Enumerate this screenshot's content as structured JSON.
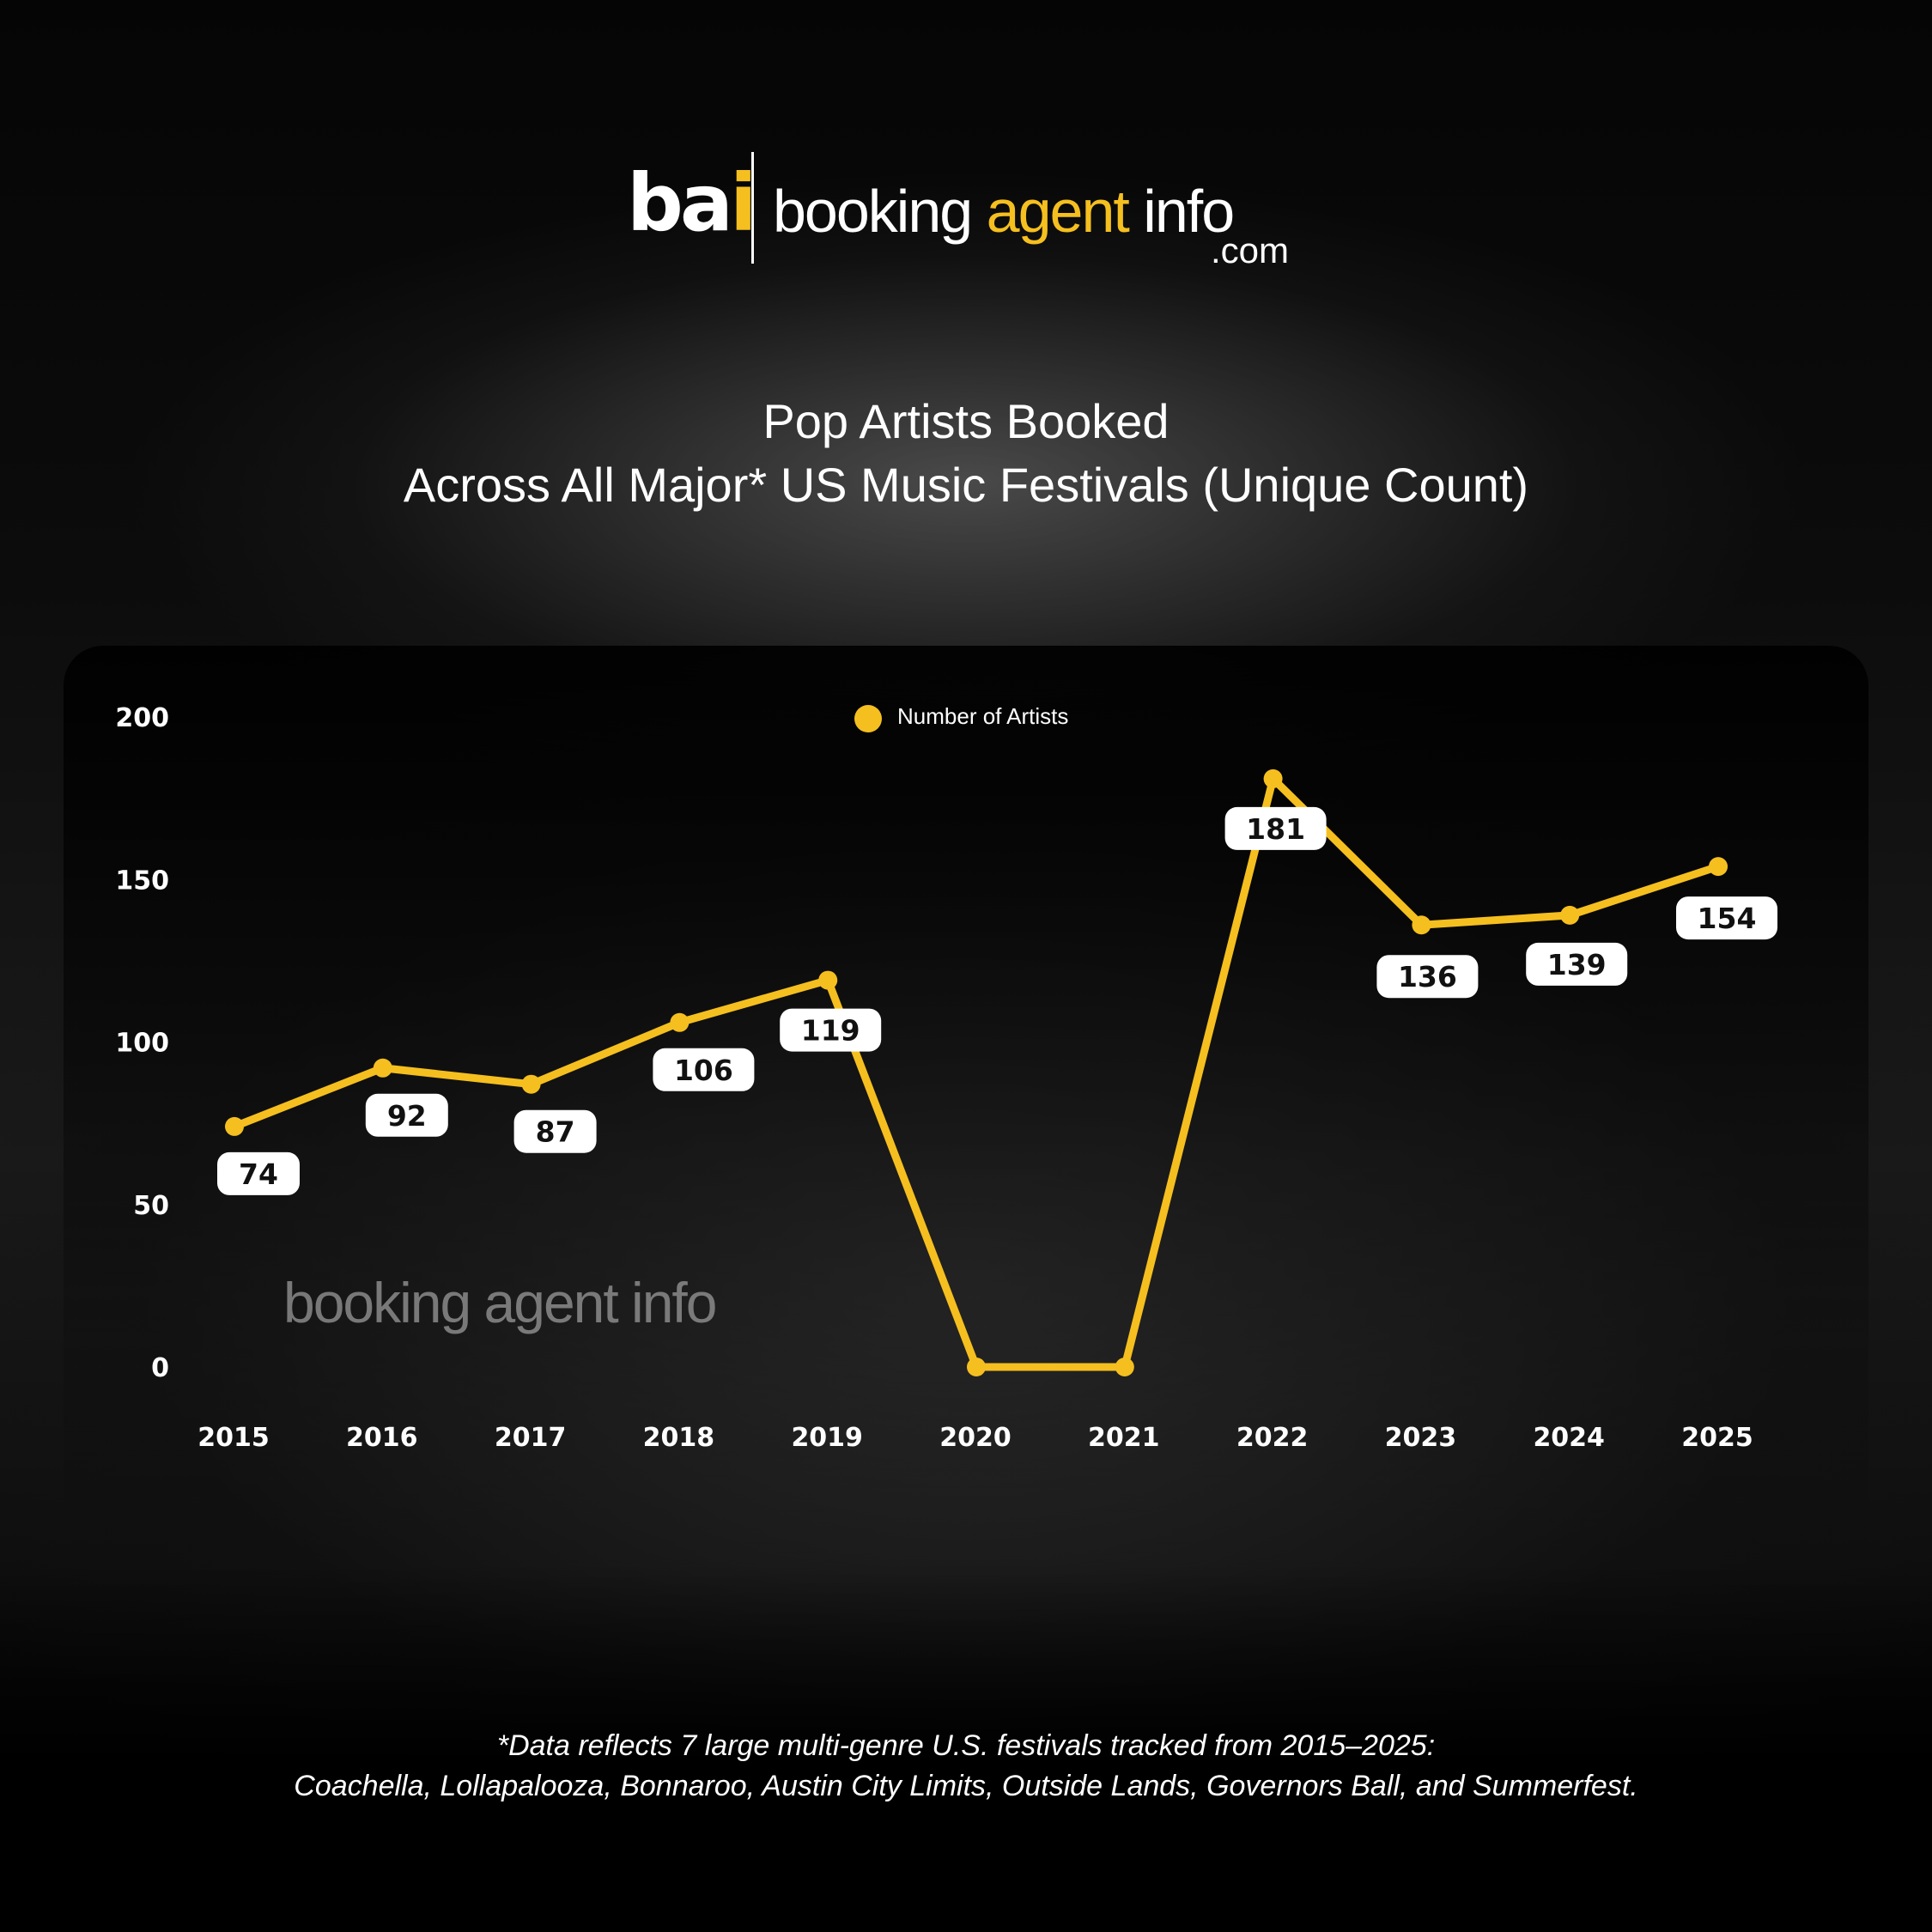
{
  "logo": {
    "mark_main": "ba",
    "mark_accent": "i",
    "name_part1": "booking ",
    "name_accent": "agent",
    "name_part2": " info",
    "domain": ".com"
  },
  "title": "Pop Artists Booked",
  "subtitle": "Across All Major* US Music Festivals (Unique Count)",
  "watermark": "booking agent info",
  "footnote": {
    "line1": "*Data reflects 7 large multi-genre U.S. festivals tracked from 2015–2025:",
    "line2": "Coachella, Lollapalooza, Bonnaroo, Austin City Limits, Outside Lands, Governors Ball, and Summerfest."
  },
  "colors": {
    "line": "#f5bf1f",
    "label_box": "#ffffff",
    "label_text": "#111111"
  },
  "chart_data": {
    "type": "line",
    "title": "Pop Artists Booked",
    "subtitle": "Across All Major* US Music Festivals (Unique Count)",
    "xlabel": "",
    "ylabel": "",
    "categories": [
      "2015",
      "2016",
      "2017",
      "2018",
      "2019",
      "2020",
      "2021",
      "2022",
      "2023",
      "2024",
      "2025"
    ],
    "series": [
      {
        "name": "Number of Artists",
        "values": [
          74,
          92,
          87,
          106,
          119,
          0,
          0,
          181,
          136,
          139,
          154
        ],
        "labels": [
          "74",
          "92",
          "87",
          "106",
          "119",
          null,
          null,
          "181",
          "136",
          "139",
          "154"
        ],
        "color": "#f5bf1f"
      }
    ],
    "ylim": [
      0,
      200
    ],
    "yticks": [
      "0",
      "50",
      "100",
      "150",
      "200"
    ],
    "legend": "top-center",
    "grid": false
  }
}
